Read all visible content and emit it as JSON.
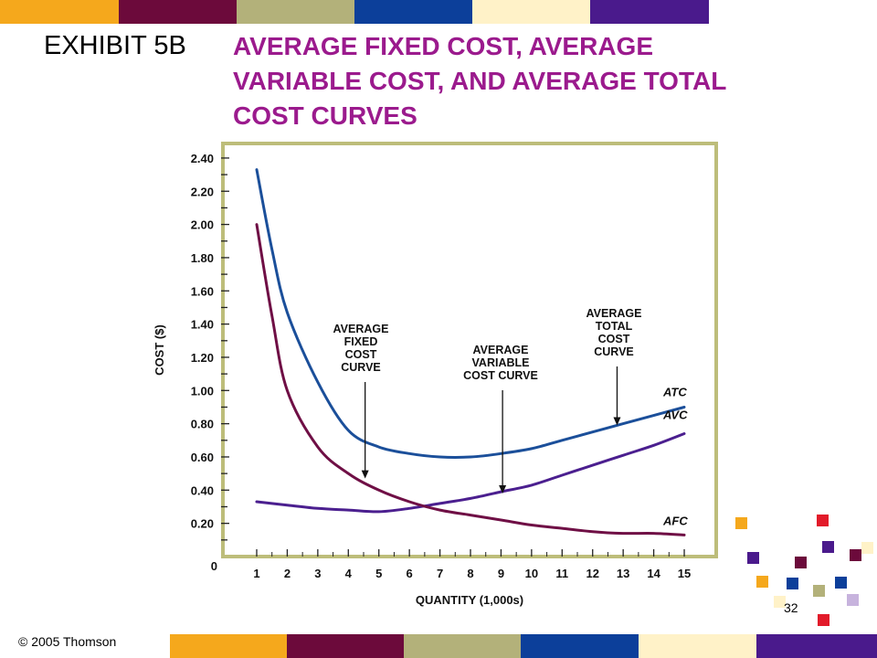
{
  "header": {
    "exhibit": "EXHIBIT 5B",
    "title_lines": [
      "AVERAGE FIXED COST, AVERAGE",
      "VARIABLE COST, AND AVERAGE TOTAL",
      "COST CURVES"
    ]
  },
  "footer": {
    "copyright": "© 2005 Thomson",
    "page_number": "32"
  },
  "colors": {
    "orange": "#f5a81c",
    "maroon": "#6c0a3b",
    "olive": "#b3b17a",
    "blue": "#0c3f9a",
    "cream": "#fff2c8",
    "purple": "#4a1a8c",
    "title": "#9b1a8d",
    "frame": "#bdbd7a",
    "atc_line": "#1b4f9a",
    "avc_line": "#4b1f8f",
    "afc_line": "#6f0f45",
    "red": "#e21b2a",
    "lavender": "#c7b3dd"
  },
  "chart_data": {
    "type": "line",
    "xlabel": "QUANTITY (1,000s)",
    "ylabel": "COST ($)",
    "x_ticks": [
      "1",
      "2",
      "3",
      "4",
      "5",
      "6",
      "7",
      "8",
      "9",
      "10",
      "11",
      "12",
      "13",
      "14",
      "15"
    ],
    "y_ticks": [
      "0.20",
      "0.40",
      "0.60",
      "0.80",
      "1.00",
      "1.20",
      "1.40",
      "1.60",
      "1.80",
      "2.00",
      "2.20",
      "2.40"
    ],
    "origin_label": "0",
    "xlim": [
      0.5,
      15.5
    ],
    "ylim": [
      0,
      2.45
    ],
    "grid": false,
    "series": [
      {
        "name": "ATC",
        "x": [
          1,
          1.5,
          2,
          3,
          4,
          5,
          6,
          7,
          8,
          9,
          10,
          11,
          12,
          13,
          14,
          15
        ],
        "y": [
          2.33,
          1.85,
          1.47,
          1.05,
          0.76,
          0.66,
          0.62,
          0.6,
          0.6,
          0.62,
          0.65,
          0.7,
          0.75,
          0.8,
          0.85,
          0.9
        ]
      },
      {
        "name": "AVC",
        "x": [
          1,
          2,
          3,
          4,
          5,
          6,
          7,
          8,
          9,
          10,
          11,
          12,
          13,
          14,
          15
        ],
        "y": [
          0.33,
          0.31,
          0.29,
          0.28,
          0.27,
          0.29,
          0.32,
          0.35,
          0.39,
          0.43,
          0.49,
          0.55,
          0.61,
          0.67,
          0.74
        ]
      },
      {
        "name": "AFC",
        "x": [
          1,
          1.5,
          2,
          3,
          4,
          5,
          6,
          7,
          8,
          9,
          10,
          11,
          12,
          13,
          14,
          15
        ],
        "y": [
          2.0,
          1.45,
          1.0,
          0.66,
          0.5,
          0.4,
          0.33,
          0.28,
          0.25,
          0.22,
          0.19,
          0.17,
          0.15,
          0.14,
          0.14,
          0.13
        ]
      }
    ],
    "annotations": [
      {
        "lines": [
          "AVERAGE",
          "FIXED",
          "COST",
          "CURVE"
        ],
        "target_x": 4.55,
        "target_y": 0.47
      },
      {
        "lines": [
          "AVERAGE",
          "VARIABLE",
          "COST CURVE"
        ],
        "target_x": 9.05,
        "target_y": 0.38
      },
      {
        "lines": [
          "AVERAGE",
          "TOTAL",
          "COST",
          "CURVE"
        ],
        "target_x": 12.8,
        "target_y": 0.79
      }
    ]
  }
}
